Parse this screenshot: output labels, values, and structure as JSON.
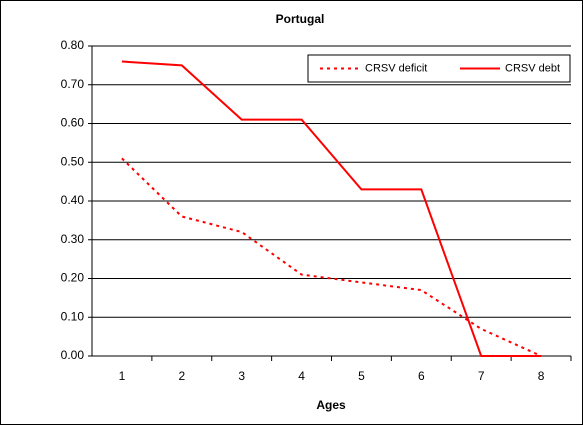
{
  "chart_data": {
    "type": "line",
    "title": "Portugal",
    "x_label": "Ages",
    "categories": [
      "1",
      "2",
      "3",
      "4",
      "5",
      "6",
      "7",
      "8"
    ],
    "series": [
      {
        "name": "CRSV deficit",
        "color": "#ff0000",
        "dash": true,
        "values": [
          0.51,
          0.36,
          0.32,
          0.21,
          0.19,
          0.17,
          0.07,
          0.0
        ]
      },
      {
        "name": "CRSV debt",
        "color": "#ff0000",
        "dash": false,
        "values": [
          0.76,
          0.75,
          0.61,
          0.61,
          0.43,
          0.43,
          0.0,
          0.0
        ]
      }
    ],
    "ylim": [
      0,
      0.8
    ],
    "yticks": [
      {
        "value": 0,
        "label": "0.00"
      },
      {
        "value": 0.1,
        "label": "0.10"
      },
      {
        "value": 0.2,
        "label": "0.20"
      },
      {
        "value": 0.3,
        "label": "0.30"
      },
      {
        "value": 0.4,
        "label": "0.40"
      },
      {
        "value": 0.5,
        "label": "0.50"
      },
      {
        "value": 0.6,
        "label": "0.60"
      },
      {
        "value": 0.7,
        "label": "0.70"
      },
      {
        "value": 0.8,
        "label": "0.80"
      }
    ],
    "grid": true,
    "legend": "top-right"
  }
}
